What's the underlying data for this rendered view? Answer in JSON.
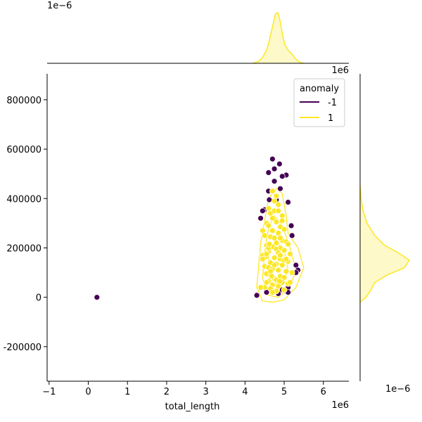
{
  "chart_data": {
    "type": "scatter",
    "xlabel": "total_length",
    "ylabel": "",
    "x_offset_label": "1e6",
    "y_offset_label": "1e6",
    "top_marginal_offset_label": "1e−6",
    "right_marginal_offset_label": "1e−6",
    "xlim": [
      -1.05,
      6.65
    ],
    "ylim": [
      -340000,
      905000
    ],
    "xticks": [
      -1,
      0,
      1,
      2,
      3,
      4,
      5,
      6
    ],
    "xtick_labels": [
      "−1",
      "0",
      "1",
      "2",
      "3",
      "4",
      "5",
      "6"
    ],
    "yticks": [
      -200000,
      0,
      200000,
      400000,
      600000,
      800000
    ],
    "ytick_labels": [
      "-200000",
      "0",
      "200000",
      "400000",
      "600000",
      "800000"
    ],
    "legend": {
      "title": "anomaly",
      "placement": "top-right",
      "entries": [
        {
          "label": "-1",
          "color": "#440154"
        },
        {
          "label": "1",
          "color": "#fde725"
        }
      ]
    },
    "series": [
      {
        "name": "-1",
        "color": "#440154",
        "x": [
          0.22,
          4.3,
          4.6,
          4.75,
          4.88,
          4.7,
          5.05,
          4.95,
          4.6,
          4.75,
          4.9,
          4.8,
          4.5,
          4.45,
          4.4,
          5.1,
          5.2,
          4.55,
          4.85,
          4.95,
          5.05,
          5.1,
          5.18,
          5.3,
          5.35,
          5.3,
          5.1,
          4.62
        ],
        "y": [
          0,
          8000,
          505000,
          520000,
          540000,
          560000,
          495000,
          490000,
          430000,
          470000,
          440000,
          395000,
          355000,
          350000,
          320000,
          385000,
          250000,
          20000,
          15000,
          30000,
          25000,
          40000,
          290000,
          130000,
          110000,
          100000,
          20000,
          395000
        ]
      },
      {
        "name": "1",
        "color": "#fde725",
        "x": [
          4.7,
          4.8,
          4.75,
          4.85,
          4.6,
          4.65,
          4.95,
          4.7,
          4.8,
          4.55,
          4.6,
          4.9,
          5.0,
          4.7,
          4.85,
          4.45,
          4.5,
          4.65,
          4.75,
          4.95,
          5.05,
          5.1,
          4.55,
          4.7,
          4.9,
          4.8,
          5.0,
          4.6,
          4.85,
          5.15,
          4.45,
          4.55,
          4.75,
          4.9,
          5.0,
          5.1,
          4.65,
          4.8,
          4.95,
          4.5,
          4.6,
          4.7,
          4.85,
          5.05,
          5.2,
          4.55,
          4.65,
          4.9,
          5.0,
          4.75,
          4.8,
          4.6,
          4.95,
          5.1,
          4.7,
          4.85,
          4.5,
          4.65,
          5.0,
          4.8,
          4.4,
          4.45,
          4.55,
          4.7,
          4.6,
          4.75,
          4.9,
          5.15,
          4.95,
          4.85,
          4.65,
          4.55,
          5.05,
          4.7,
          4.8,
          4.75,
          4.9,
          4.62,
          4.68,
          4.88
        ],
        "y": [
          430000,
          410000,
          390000,
          375000,
          360000,
          340000,
          330000,
          320000,
          305000,
          300000,
          290000,
          285000,
          275000,
          270000,
          260000,
          270000,
          250000,
          245000,
          240000,
          230000,
          225000,
          215000,
          210000,
          205000,
          200000,
          195000,
          190000,
          185000,
          180000,
          175000,
          170000,
          165000,
          160000,
          155000,
          150000,
          145000,
          140000,
          135000,
          130000,
          125000,
          120000,
          115000,
          110000,
          105000,
          100000,
          95000,
          90000,
          85000,
          80000,
          75000,
          70000,
          65000,
          60000,
          55000,
          50000,
          45000,
          40000,
          35000,
          30000,
          25000,
          40000,
          155000,
          60000,
          20000,
          200000,
          350000,
          240000,
          60000,
          310000,
          350000,
          105000,
          175000,
          155000,
          270000,
          220000,
          130000,
          170000,
          215000,
          85000,
          65000
        ]
      }
    ],
    "top_marginal_density": {
      "name": "1",
      "color": "#fde725",
      "x": [
        4.2,
        4.35,
        4.45,
        4.55,
        4.62,
        4.7,
        4.78,
        4.84,
        4.9,
        4.96,
        5.02,
        5.1,
        5.2,
        5.3,
        5.4,
        5.5
      ],
      "density": [
        0.0,
        0.04,
        0.12,
        0.26,
        0.45,
        0.72,
        0.98,
        1.0,
        0.82,
        0.55,
        0.36,
        0.26,
        0.18,
        0.08,
        0.02,
        0.0
      ]
    },
    "right_marginal_density": {
      "name": "1",
      "color": "#fde725",
      "y": [
        -20000,
        0,
        30000,
        60000,
        90000,
        120000,
        150000,
        180000,
        210000,
        250000,
        300000,
        350000,
        400000,
        450000
      ],
      "density": [
        0.0,
        0.12,
        0.22,
        0.3,
        0.55,
        0.9,
        1.0,
        0.78,
        0.5,
        0.3,
        0.14,
        0.06,
        0.02,
        0.0
      ]
    }
  }
}
